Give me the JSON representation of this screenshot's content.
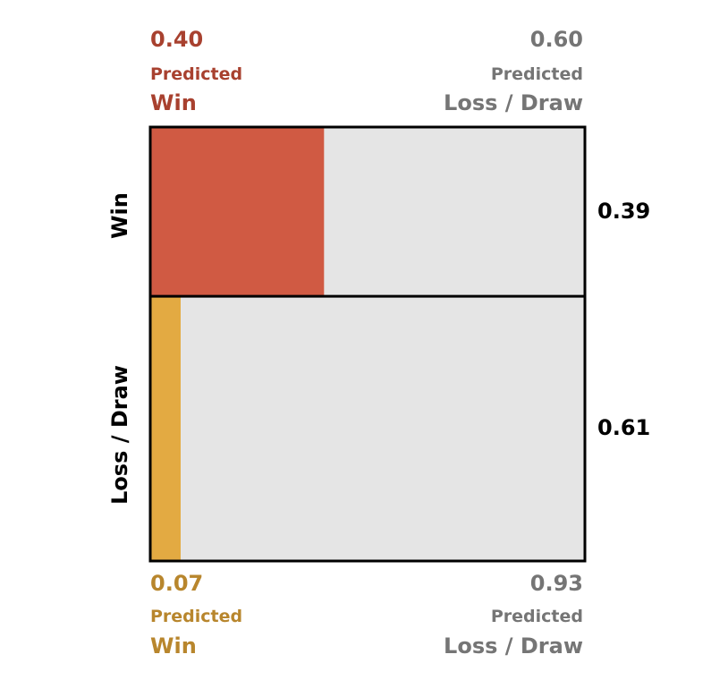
{
  "chart_data": {
    "type": "mosaic",
    "title": "",
    "actual_classes": [
      "Win",
      "Loss / Draw"
    ],
    "predicted_classes": [
      "Win",
      "Loss / Draw"
    ],
    "rows": [
      {
        "actual": "Win",
        "row_fraction": 0.39,
        "row_fraction_label": "0.39",
        "predicted_win": 0.4,
        "predicted_win_label": "0.40",
        "predicted_loss_draw": 0.6,
        "predicted_loss_draw_label": "0.60",
        "fill_color": "#d05a43",
        "label_color": "#a8412f"
      },
      {
        "actual": "Loss / Draw",
        "row_fraction": 0.61,
        "row_fraction_label": "0.61",
        "predicted_win": 0.07,
        "predicted_win_label": "0.07",
        "predicted_loss_draw": 0.93,
        "predicted_loss_draw_label": "0.93",
        "fill_color": "#e3aa42",
        "label_color": "#b8862d"
      }
    ],
    "rest_fill_color": "#e5e5e5",
    "rest_label_color": "#757575",
    "border_color": "#000000"
  },
  "labels": {
    "predicted": "Predicted",
    "win": "Win",
    "loss_draw": "Loss / Draw",
    "row_win": "Win",
    "row_loss_draw": "Loss / Draw"
  }
}
